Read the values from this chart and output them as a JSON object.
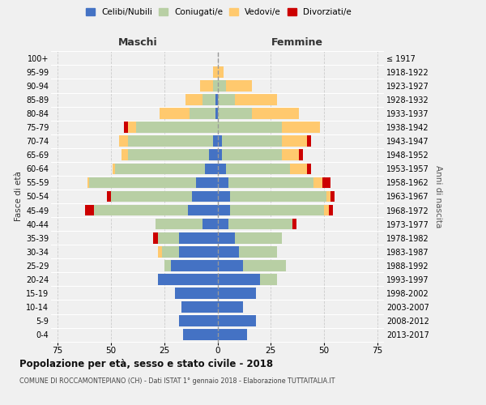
{
  "age_groups": [
    "0-4",
    "5-9",
    "10-14",
    "15-19",
    "20-24",
    "25-29",
    "30-34",
    "35-39",
    "40-44",
    "45-49",
    "50-54",
    "55-59",
    "60-64",
    "65-69",
    "70-74",
    "75-79",
    "80-84",
    "85-89",
    "90-94",
    "95-99",
    "100+"
  ],
  "birth_years": [
    "2013-2017",
    "2008-2012",
    "2003-2007",
    "1998-2002",
    "1993-1997",
    "1988-1992",
    "1983-1987",
    "1978-1982",
    "1973-1977",
    "1968-1972",
    "1963-1967",
    "1958-1962",
    "1953-1957",
    "1948-1952",
    "1943-1947",
    "1938-1942",
    "1933-1937",
    "1928-1932",
    "1923-1927",
    "1918-1922",
    "≤ 1917"
  ],
  "colors": {
    "celibe": "#4472c4",
    "coniugato": "#b8cfa4",
    "vedovo": "#ffc96e",
    "divorziato": "#cc0000"
  },
  "maschi_celibe": [
    16,
    18,
    17,
    20,
    28,
    22,
    18,
    18,
    7,
    14,
    12,
    10,
    6,
    4,
    2,
    0,
    1,
    1,
    0,
    0,
    0
  ],
  "maschi_coniugato": [
    0,
    0,
    0,
    0,
    0,
    3,
    8,
    10,
    22,
    44,
    38,
    50,
    42,
    38,
    40,
    38,
    12,
    6,
    2,
    0,
    0
  ],
  "maschi_vedovo": [
    0,
    0,
    0,
    0,
    0,
    0,
    2,
    0,
    0,
    0,
    0,
    1,
    1,
    3,
    4,
    4,
    14,
    8,
    6,
    2,
    0
  ],
  "maschi_divorziato": [
    0,
    0,
    0,
    0,
    0,
    0,
    0,
    2,
    0,
    4,
    2,
    0,
    0,
    0,
    0,
    2,
    0,
    0,
    0,
    0,
    0
  ],
  "femmine_nubile": [
    14,
    18,
    12,
    18,
    20,
    12,
    10,
    8,
    5,
    6,
    6,
    5,
    4,
    2,
    2,
    0,
    0,
    0,
    0,
    0,
    0
  ],
  "femmine_coniugata": [
    0,
    0,
    0,
    0,
    8,
    20,
    18,
    22,
    30,
    44,
    45,
    40,
    30,
    28,
    28,
    30,
    16,
    8,
    4,
    0,
    0
  ],
  "femmine_vedova": [
    0,
    0,
    0,
    0,
    0,
    0,
    0,
    0,
    0,
    2,
    2,
    4,
    8,
    8,
    12,
    18,
    22,
    20,
    12,
    3,
    0
  ],
  "femmine_divorziata": [
    0,
    0,
    0,
    0,
    0,
    0,
    0,
    0,
    2,
    2,
    2,
    4,
    2,
    2,
    2,
    0,
    0,
    0,
    0,
    0,
    0
  ],
  "xlim": 78,
  "title": "Popolazione per età, sesso e stato civile - 2018",
  "subtitle": "COMUNE DI ROCCAMONTEPIANO (CH) - Dati ISTAT 1° gennaio 2018 - Elaborazione TUTTAITALIA.IT",
  "ylabel_left": "Fasce di età",
  "ylabel_right": "Anni di nascita",
  "label_maschi": "Maschi",
  "label_femmine": "Femmine",
  "legend_labels": [
    "Celibi/Nubili",
    "Coniugati/e",
    "Vedovi/e",
    "Divorziati/e"
  ],
  "background_color": "#f0f0f0"
}
